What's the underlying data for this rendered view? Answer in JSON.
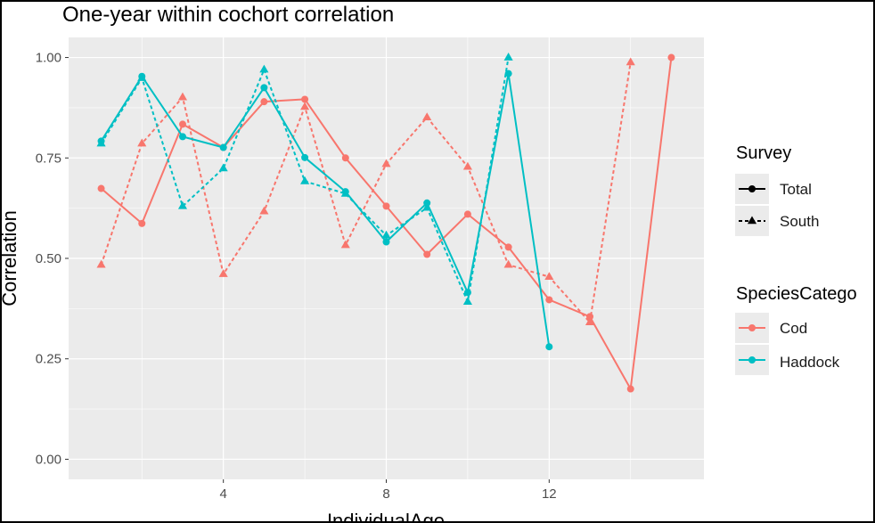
{
  "chart_data": {
    "type": "line",
    "title": "One-year within cochort correlation",
    "xlabel": "IndividualAge",
    "ylabel": "Correlation",
    "xlim": [
      0.2,
      15.8
    ],
    "ylim": [
      -0.05,
      1.05
    ],
    "x_ticks": [
      4,
      8,
      12
    ],
    "y_ticks": [
      0.0,
      0.25,
      0.5,
      0.75,
      1.0
    ],
    "y_tick_labels": [
      "0.00",
      "0.25",
      "0.50",
      "0.75",
      "1.00"
    ],
    "grid": true,
    "colors": {
      "Cod": "#F8766D",
      "Haddock": "#00BFC4"
    },
    "series": [
      {
        "species": "Cod",
        "survey": "Total",
        "x": [
          1,
          2,
          3,
          4,
          5,
          6,
          7,
          8,
          9,
          10,
          11,
          12,
          13,
          14,
          15
        ],
        "y": [
          0.674,
          0.587,
          0.834,
          0.776,
          0.89,
          0.896,
          0.75,
          0.63,
          0.51,
          0.61,
          0.528,
          0.397,
          0.355,
          0.175,
          1.0
        ]
      },
      {
        "species": "Cod",
        "survey": "South",
        "x": [
          1,
          2,
          3,
          4,
          5,
          6,
          7,
          8,
          9,
          10,
          11,
          12,
          13,
          14
        ],
        "y": [
          0.484,
          0.786,
          0.901,
          0.461,
          0.617,
          0.877,
          0.533,
          0.735,
          0.851,
          0.728,
          0.484,
          0.454,
          0.341,
          0.988
        ]
      },
      {
        "species": "Haddock",
        "survey": "Total",
        "x": [
          1,
          2,
          3,
          4,
          5,
          6,
          7,
          8,
          9,
          10,
          11,
          12
        ],
        "y": [
          0.792,
          0.953,
          0.803,
          0.776,
          0.925,
          0.751,
          0.666,
          0.541,
          0.638,
          0.415,
          0.96,
          0.28
        ]
      },
      {
        "species": "Haddock",
        "survey": "South",
        "x": [
          1,
          2,
          3,
          4,
          5,
          6,
          7,
          8,
          9,
          10,
          11
        ],
        "y": [
          0.786,
          0.949,
          0.63,
          0.724,
          0.97,
          0.692,
          0.661,
          0.557,
          0.626,
          0.392,
          1.0
        ]
      }
    ],
    "legend": {
      "placement": "right",
      "survey_title": "Survey",
      "survey_items": [
        "Total",
        "South"
      ],
      "species_title": "SpeciesCatego",
      "species_items": [
        "Cod",
        "Haddock"
      ]
    }
  }
}
